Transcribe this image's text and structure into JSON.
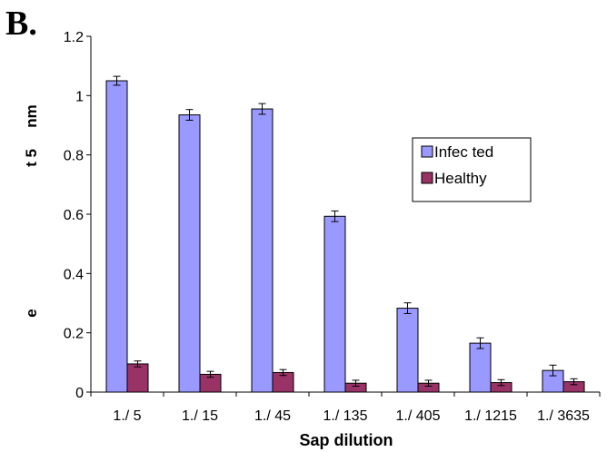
{
  "panel_label": "B.",
  "chart_data": {
    "type": "bar",
    "categories": [
      "1./ 5",
      "1./ 15",
      "1./ 45",
      "1./ 135",
      "1./ 405",
      "1./ 1215",
      "1./ 3635"
    ],
    "series": [
      {
        "name": "Infec ted",
        "color": "#9999ff",
        "values": [
          1.05,
          0.935,
          0.955,
          0.593,
          0.283,
          0.165,
          0.073
        ],
        "errors": [
          0.015,
          0.018,
          0.018,
          0.018,
          0.018,
          0.018,
          0.018
        ]
      },
      {
        "name": "Healthy",
        "color": "#993366",
        "values": [
          0.095,
          0.06,
          0.066,
          0.03,
          0.03,
          0.032,
          0.035
        ],
        "errors": [
          0.01,
          0.01,
          0.01,
          0.01,
          0.01,
          0.01,
          0.01
        ]
      }
    ],
    "xlabel": "Sap dilution",
    "ylabel_fragments": [
      "nm",
      "t 5",
      "e"
    ],
    "ylim": [
      0,
      1.2
    ],
    "yticks": [
      "0",
      "0.2",
      "0.4",
      "0.6",
      "0.8",
      "1",
      "1.2"
    ],
    "grid": false,
    "legend": "right"
  }
}
